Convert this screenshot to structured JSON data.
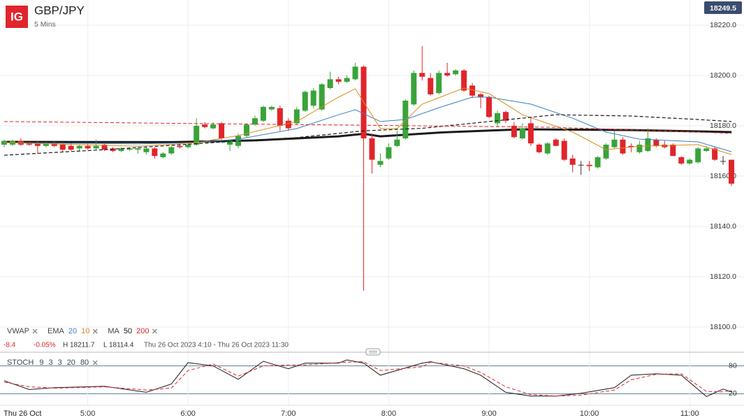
{
  "header": {
    "brand": "IG",
    "title": "GBP/JPY",
    "interval": "5 Mins",
    "badge": "18249.5"
  },
  "indicator_bar": {
    "change": "-8.4",
    "change_pct": "-0.05%",
    "high": "H 18211.7",
    "low": "L 18114.4",
    "range": "Thu 26 Oct 2023 4:10 - Thu 26 Oct 2023 11:30"
  },
  "date_label": "Thu 26 Oct",
  "chart_data": [
    {
      "type": "candlestick",
      "up_color": "#3aa33a",
      "down_color": "#e0252b",
      "flat_color": "#333333",
      "xlim": [
        -0.5,
        88.5
      ],
      "ylim": [
        18090,
        18230
      ],
      "yticks": [
        {
          "value": 18100,
          "label": "18100.0"
        },
        {
          "value": 18120,
          "label": "18120.0"
        },
        {
          "value": 18140,
          "label": "18140.0"
        },
        {
          "value": 18160,
          "label": "18160.0"
        },
        {
          "value": 18180,
          "label": "18180.0"
        },
        {
          "value": 18200,
          "label": "18200.0"
        },
        {
          "value": 18220,
          "label": "18220.0"
        }
      ],
      "grid": true,
      "open": [
        18172.5,
        18172.5,
        18174,
        18173,
        18173,
        18172,
        18173,
        18172.5,
        18172,
        18171,
        18172,
        18171,
        18172.5,
        18171,
        18170,
        18170.5,
        18170.5,
        18169.5,
        18171,
        18167.5,
        18169,
        18172,
        18171.5,
        18172.5,
        18180.5,
        18179,
        18181,
        18172.5,
        18172,
        18176,
        18180.5,
        18182,
        18186.5,
        18187,
        18182,
        18181,
        18186,
        18188,
        18186.5,
        18195,
        18198.5,
        18197.5,
        18198.5,
        18203.5,
        18175,
        18164.5,
        18167,
        18172,
        18175,
        18188.5,
        18201,
        18199,
        18193,
        18201,
        18200.5,
        18202,
        18196,
        18192.5,
        18191.5,
        18181,
        18185.5,
        18180,
        18175,
        18181,
        18172.5,
        18169,
        18174.5,
        18174,
        18167,
        18164.5,
        18164.5,
        18163.5,
        18167,
        18171.5,
        18174.5,
        18172,
        18169.5,
        18170,
        18174.5,
        18172.5,
        18172.5,
        18167.5,
        18165,
        18165.5,
        18170,
        18171,
        18166,
        18166.5
      ],
      "high": [
        18174.5,
        18174.5,
        18175,
        18173.5,
        18174,
        18173.5,
        18174,
        18173.5,
        18173,
        18172.5,
        18173,
        18174.5,
        18173,
        18171.5,
        18171.5,
        18171.5,
        18171.5,
        18171.5,
        18171.5,
        18169.5,
        18172,
        18173,
        18173,
        18183,
        18181.5,
        18181.5,
        18181.5,
        18174.5,
        18177,
        18181,
        18184,
        18188,
        18188,
        18188,
        18183,
        18187.5,
        18194,
        18195,
        18197,
        18201.5,
        18199.5,
        18200,
        18205,
        18204,
        18177,
        18169,
        18173,
        18178,
        18190.5,
        18202,
        18211.7,
        18201,
        18202,
        18205,
        18202.5,
        18202.5,
        18197,
        18193,
        18192,
        18186,
        18186,
        18181.5,
        18181,
        18183,
        18173,
        18173.5,
        18175,
        18175,
        18168.5,
        18166,
        18166,
        18168,
        18173,
        18178,
        18175.5,
        18173,
        18174,
        18179,
        18175,
        18174,
        18173,
        18168,
        18167,
        18171.5,
        18172,
        18171.5,
        18168,
        18166.5
      ],
      "low": [
        18171.5,
        18172,
        18172,
        18172,
        18169,
        18171.5,
        18171.5,
        18169.5,
        18170,
        18170,
        18170.5,
        18170.5,
        18170,
        18169.5,
        18169.5,
        18170,
        18169,
        18168.5,
        18167,
        18167,
        18168.5,
        18171,
        18171,
        18172,
        18179,
        18178.5,
        18174.5,
        18170,
        18171,
        18175.5,
        18180,
        18181.5,
        18186,
        18178,
        18178,
        18180.5,
        18185.5,
        18187,
        18186,
        18194.5,
        18196.5,
        18197,
        18198,
        18114.4,
        18161,
        18163.5,
        18166.5,
        18171.5,
        18174.5,
        18188,
        18198,
        18192,
        18192.5,
        18199.5,
        18200,
        18193.5,
        18191,
        18187,
        18183,
        18179.5,
        18181,
        18175,
        18174.5,
        18172,
        18169,
        18168.5,
        18172,
        18166,
        18161.5,
        18160.5,
        18162,
        18163,
        18166.5,
        18171,
        18168.5,
        18169.5,
        18169,
        18169.5,
        18171.5,
        18171,
        18168,
        18164.5,
        18164.5,
        18165,
        18169.5,
        18166,
        18164.5,
        18156
      ],
      "close": [
        18174,
        18174,
        18172.5,
        18172.5,
        18172,
        18173,
        18172,
        18170.5,
        18170.5,
        18172,
        18171,
        18172,
        18170.5,
        18170,
        18171,
        18171,
        18171,
        18171,
        18168,
        18169,
        18171.5,
        18171.5,
        18172.5,
        18180,
        18179.5,
        18180.5,
        18175,
        18174,
        18176,
        18180.5,
        18183,
        18187.5,
        18187.5,
        18180,
        18179,
        18186.5,
        18193.5,
        18194,
        18196.5,
        18198.5,
        18197.5,
        18199,
        18203.5,
        18175,
        18166.5,
        18166,
        18171.5,
        18174.5,
        18190,
        18201,
        18199.5,
        18192.5,
        18201,
        18200,
        18202,
        18194,
        18192,
        18191.5,
        18183.5,
        18185,
        18182,
        18175.5,
        18179,
        18173,
        18169.5,
        18173,
        18172,
        18166.5,
        18164.5,
        18164.5,
        18164,
        18167.5,
        18172.5,
        18174.5,
        18169,
        18171.5,
        18172.5,
        18175,
        18172,
        18171.5,
        18168,
        18165,
        18166.5,
        18171,
        18171,
        18166.5,
        18166,
        18157
      ],
      "series": [
        {
          "name": "VWAP",
          "color": "#1a1a1a",
          "style": "solid",
          "width": 3,
          "x": [
            0,
            20,
            30,
            40,
            43,
            45,
            52,
            62,
            75,
            87
          ],
          "values": [
            18173.6,
            18173.5,
            18174.2,
            18175.8,
            18176.8,
            18175.8,
            18177.3,
            18178.6,
            18178.3,
            18177.5
          ]
        },
        {
          "name": "20",
          "group": "EMA",
          "color": "#3a7fc1",
          "style": "solid",
          "width": 1,
          "x": [
            0,
            16,
            23,
            28,
            35,
            40,
            42,
            45,
            48,
            52,
            56,
            58,
            63,
            68,
            72,
            76,
            83,
            87
          ],
          "values": [
            18173.3,
            18172.8,
            18173.3,
            18174.7,
            18178.9,
            18184.4,
            18186.4,
            18181.7,
            18182.5,
            18187.2,
            18191.4,
            18191.4,
            18188.6,
            18183,
            18177.5,
            18174.7,
            18173.6,
            18169.7
          ]
        },
        {
          "name": "10",
          "group": "EMA",
          "color": "#d98c1a",
          "style": "solid",
          "width": 1,
          "x": [
            0,
            16,
            23,
            28,
            35,
            40,
            42,
            45,
            47,
            50,
            55,
            58,
            62,
            68,
            72,
            76,
            83,
            87
          ],
          "values": [
            18173.3,
            18171.9,
            18173.3,
            18176.1,
            18181.7,
            18191.4,
            18194.7,
            18178.9,
            18178.9,
            18188.6,
            18195,
            18192.8,
            18184.4,
            18177.5,
            18170.5,
            18171.9,
            18172.5,
            18168.6
          ]
        },
        {
          "name": "50",
          "group": "MA",
          "color": "#1a1a1a",
          "style": "dashed",
          "width": 1.2,
          "x": [
            0,
            12,
            25,
            35,
            43,
            50,
            58,
            66,
            75,
            83,
            87
          ],
          "values": [
            18168.3,
            18170.5,
            18173.3,
            18175.3,
            18178,
            18179,
            18181.7,
            18184.4,
            18183.9,
            18182.5,
            18181.7
          ]
        },
        {
          "name": "200",
          "group": "MA",
          "color": "#e0252b",
          "style": "dashed",
          "width": 1,
          "x": [
            0,
            25,
            41,
            66,
            83,
            87
          ],
          "values": [
            18181.7,
            18180.8,
            18180.3,
            18179.4,
            18177.5,
            18177
          ]
        }
      ]
    },
    {
      "type": "line",
      "title": "STOCH",
      "params": [
        "9",
        "3",
        "3",
        "20",
        "80"
      ],
      "xlim": [
        -0.5,
        88.5
      ],
      "ylim": [
        -5,
        105
      ],
      "yticks": [
        20,
        80
      ],
      "xticks": [
        {
          "value": 10,
          "label": "5:00"
        },
        {
          "value": 22,
          "label": "6:00"
        },
        {
          "value": 34,
          "label": "7:00"
        },
        {
          "value": 46,
          "label": "8:00"
        },
        {
          "value": 58,
          "label": "9:00"
        },
        {
          "value": 70,
          "label": "10:00"
        },
        {
          "value": 82,
          "label": "11:00"
        }
      ],
      "series": [
        {
          "color": "#1a1a1a",
          "style": "solid",
          "x": [
            0,
            3,
            6,
            12,
            17,
            20,
            22,
            25,
            28,
            31,
            34,
            36,
            40,
            41,
            43,
            45,
            50,
            51,
            55,
            57,
            60,
            63,
            66,
            69,
            73,
            75,
            78,
            81,
            84,
            86,
            87
          ],
          "values": [
            48,
            29,
            33,
            36,
            23,
            41,
            87,
            80,
            51,
            90,
            74,
            86,
            86,
            93,
            86,
            60,
            86,
            89,
            74,
            60,
            23,
            15,
            15,
            21,
            33,
            60,
            63,
            60,
            14,
            30,
            24
          ]
        },
        {
          "color": "#e0252b",
          "style": "dashed",
          "x": [
            0,
            3,
            6,
            12,
            17,
            20,
            22,
            25,
            28,
            31,
            34,
            36,
            40,
            41,
            43,
            45,
            50,
            51,
            55,
            57,
            60,
            63,
            66,
            69,
            73,
            75,
            78,
            81,
            84,
            86,
            87
          ],
          "values": [
            45,
            35,
            32,
            35,
            28,
            32,
            70,
            84,
            58,
            80,
            82,
            82,
            87,
            88,
            89,
            70,
            78,
            88,
            80,
            66,
            35,
            18,
            15,
            17,
            28,
            50,
            62,
            63,
            25,
            24,
            27
          ]
        }
      ]
    }
  ]
}
